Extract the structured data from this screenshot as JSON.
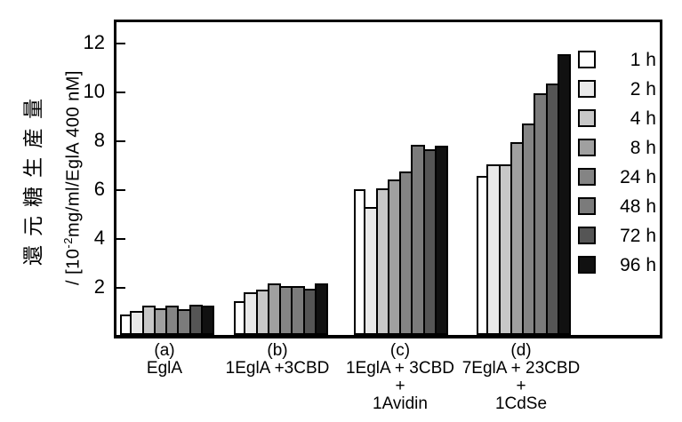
{
  "figure": {
    "background": "#ffffff",
    "frame_color": "#000000",
    "y_axis_label": {
      "line1": "還元糖生産量",
      "line2_prefix": "/ [10",
      "line2_sup": "-2",
      "line2_suffix": "mg/ml/EglA 400 nM]"
    }
  },
  "chart_data": {
    "type": "bar",
    "title": "",
    "xlabel": "",
    "ylabel": "還元糖生産量 / [10^-2 mg/ml/EglA 400 nM]",
    "ylim": [
      0,
      13
    ],
    "yticks": [
      2,
      4,
      6,
      8,
      10,
      12
    ],
    "grid": false,
    "legend_position": "upper-right-inside",
    "bar_outline_color": "#000000",
    "categories": [
      "(a) EglA",
      "(b) 1EglA +3CBD",
      "(c) 1EglA + 3CBD + 1Avidin",
      "(d) 7EglA + 23CBD + 1CdSe"
    ],
    "series": [
      {
        "name": "1 h",
        "color": "#ffffff",
        "values": [
          0.85,
          1.4,
          5.95,
          6.5
        ]
      },
      {
        "name": "2 h",
        "color": "#e9e9e9",
        "values": [
          1.0,
          1.75,
          5.25,
          7.0
        ]
      },
      {
        "name": "4 h",
        "color": "#c7c7c7",
        "values": [
          1.2,
          1.85,
          6.0,
          7.0
        ]
      },
      {
        "name": "8 h",
        "color": "#a0a0a0",
        "values": [
          1.1,
          2.1,
          6.35,
          7.9
        ]
      },
      {
        "name": "24 h",
        "color": "#848484",
        "values": [
          1.2,
          2.0,
          6.7,
          8.65
        ]
      },
      {
        "name": "48 h",
        "color": "#7b7b7b",
        "values": [
          1.05,
          2.0,
          7.8,
          9.9
        ]
      },
      {
        "name": "72 h",
        "color": "#555555",
        "values": [
          1.25,
          1.9,
          7.6,
          10.3
        ]
      },
      {
        "name": "96 h",
        "color": "#111111",
        "values": [
          1.2,
          2.1,
          7.75,
          11.5
        ]
      }
    ]
  },
  "x_labels": [
    {
      "tag": "(a)",
      "lines": [
        "EglA"
      ]
    },
    {
      "tag": "(b)",
      "lines": [
        "1EglA +3CBD"
      ]
    },
    {
      "tag": "(c)",
      "lines": [
        "1EglA + 3CBD",
        "+",
        "1Avidin"
      ]
    },
    {
      "tag": "(d)",
      "lines": [
        "7EglA + 23CBD",
        "+",
        "1CdSe"
      ]
    }
  ]
}
